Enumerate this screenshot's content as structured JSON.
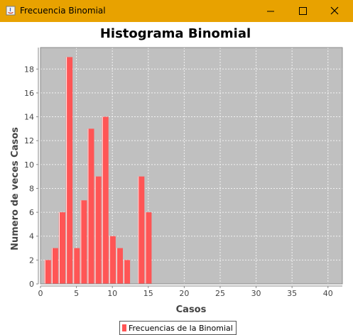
{
  "window": {
    "title": "Frecuencia Binomial",
    "buttons": [
      "minimize",
      "maximize",
      "close"
    ],
    "titlebar_color": "#e8a200"
  },
  "chart_data": {
    "type": "bar",
    "title": "Histograma Binomial",
    "xlabel": "Casos",
    "ylabel": "Numero de veces Casos",
    "x": [
      1,
      2,
      3,
      4,
      5,
      6,
      7,
      8,
      9,
      10,
      11,
      12,
      13,
      14,
      15,
      16
    ],
    "series": [
      {
        "name": "Frecuencias de la Binomial",
        "values": [
          2,
          3,
          6,
          19,
          3,
          7,
          13,
          9,
          14,
          4,
          3,
          2,
          0,
          9,
          6,
          0
        ]
      }
    ],
    "xlim": [
      0,
      42
    ],
    "ylim": [
      0,
      19.8
    ],
    "xticks": [
      0,
      5,
      10,
      15,
      20,
      25,
      30,
      35,
      40
    ],
    "yticks": [
      0,
      2,
      4,
      6,
      8,
      10,
      12,
      14,
      16,
      18
    ],
    "grid": true,
    "legend_position": "bottom",
    "colors": {
      "bar": "#ff5555",
      "plot_background": "#c0c0c0",
      "gridline": "#ffffff"
    }
  }
}
